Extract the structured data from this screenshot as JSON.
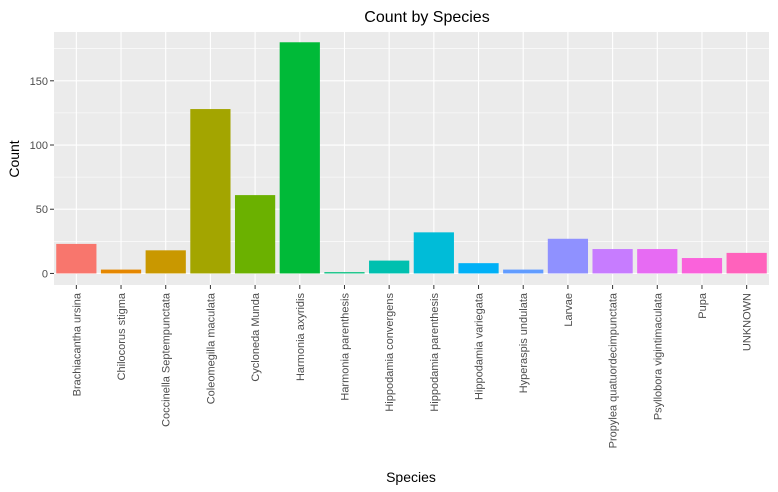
{
  "chart_data": {
    "type": "bar",
    "title": "Count by Species",
    "xlabel": "Species",
    "ylabel": "Count",
    "ylim": [
      -9,
      188
    ],
    "yticks": [
      0,
      50,
      100,
      150
    ],
    "legend": "none",
    "grid": true,
    "categories": [
      "Brachiacantha ursina",
      "Chilocorus stigma",
      "Coccinella Septempunctata",
      "Coleomegilla maculata",
      "Cycloneda Munda",
      "Harmonia axyridis",
      "Harmonia parenthesis",
      "Hippodamia convergens",
      "Hippodamia parenthesis",
      "Hippodamia variegata",
      "Hyperaspis undulata",
      "Larvae",
      "Propylea quatuordecimpunctata",
      "Psyllobora vigintimaculata",
      "Pupa",
      "UNKNOWN"
    ],
    "values": [
      23,
      3,
      18,
      128,
      61,
      180,
      1,
      10,
      32,
      8,
      3,
      27,
      19,
      19,
      12,
      16
    ],
    "colors": [
      "#F8766D",
      "#E58700",
      "#C99800",
      "#A3A500",
      "#6BB100",
      "#00BA38",
      "#00BF7D",
      "#00C0AF",
      "#00BCD8",
      "#00B0F6",
      "#619CFF",
      "#8F91FF",
      "#C77CFF",
      "#E76BF3",
      "#FA62DB",
      "#FF62BC"
    ],
    "panel_background": "#EBEBEB",
    "grid_color": "#FFFFFF"
  }
}
